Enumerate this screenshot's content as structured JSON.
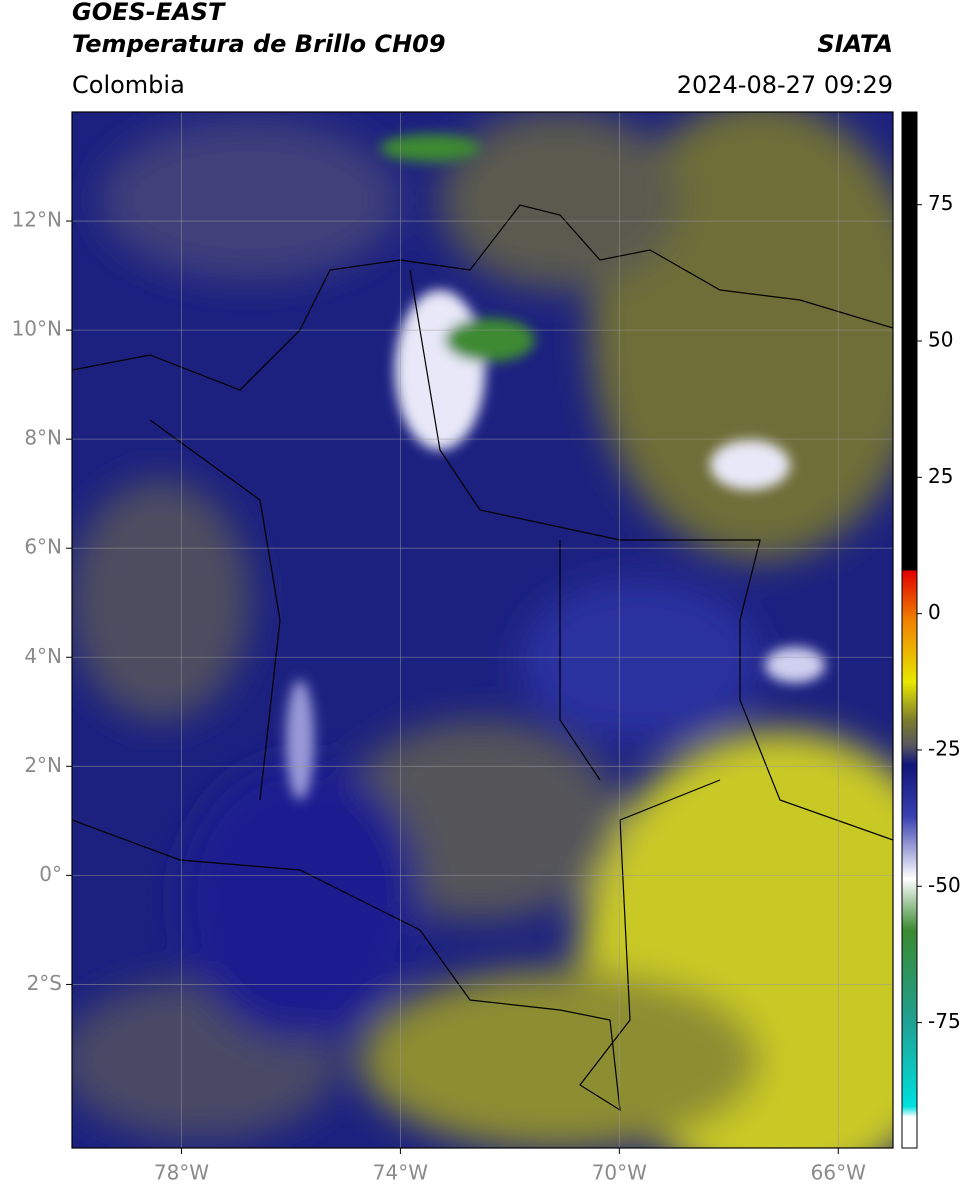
{
  "header": {
    "title": "GOES-EAST",
    "subtitle": "Temperatura de Brillo CH09",
    "region": "Colombia",
    "source": "SIATA",
    "timestamp": "2024-08-27 09:29"
  },
  "map": {
    "xlim": [
      -80,
      -65
    ],
    "ylim": [
      -5,
      14
    ],
    "xticks": [
      {
        "value": -78,
        "label": "78°W"
      },
      {
        "value": -74,
        "label": "74°W"
      },
      {
        "value": -70,
        "label": "70°W"
      },
      {
        "value": -66,
        "label": "66°W"
      }
    ],
    "yticks": [
      {
        "value": 12,
        "label": "12°N"
      },
      {
        "value": 10,
        "label": "10°N"
      },
      {
        "value": 8,
        "label": "8°N"
      },
      {
        "value": 6,
        "label": "6°N"
      },
      {
        "value": 4,
        "label": "4°N"
      },
      {
        "value": 2,
        "label": "2°N"
      },
      {
        "value": 0,
        "label": "0°"
      },
      {
        "value": -2,
        "label": "2°S"
      }
    ],
    "grid": true
  },
  "colorbar": {
    "lim": [
      -98,
      92
    ],
    "ticks": [
      75,
      50,
      25,
      0,
      -25,
      -50,
      -75
    ]
  }
}
